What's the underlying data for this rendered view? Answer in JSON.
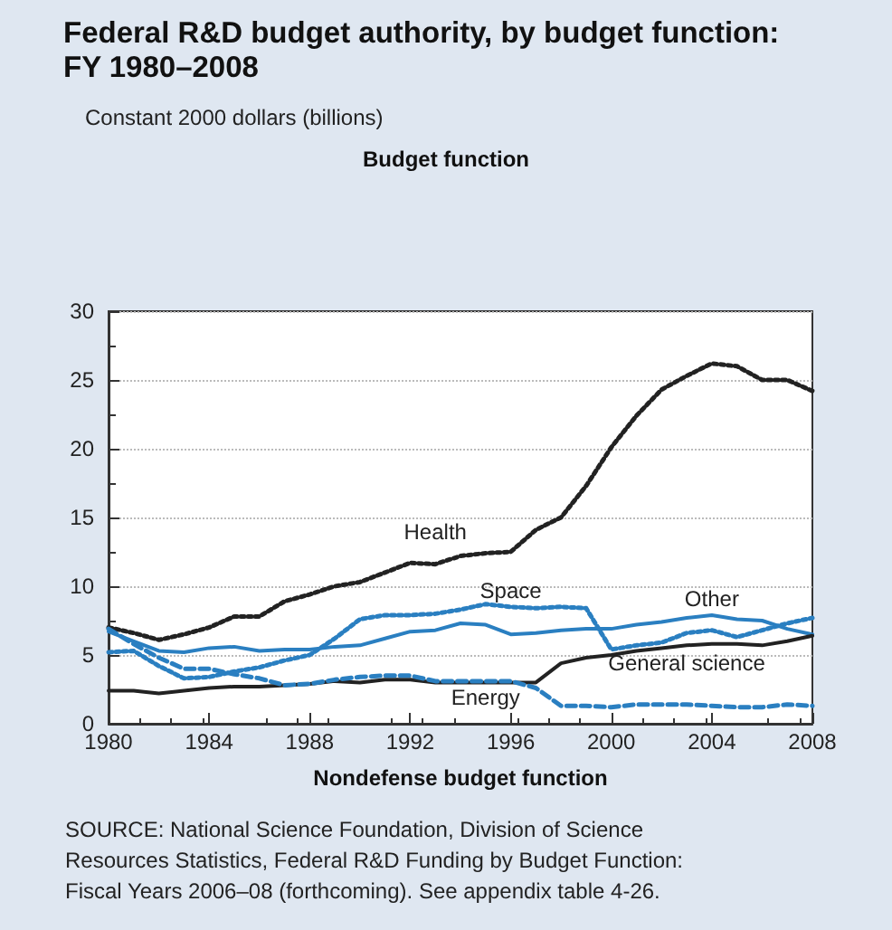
{
  "chart_data": {
    "type": "line",
    "title": "Federal R&D budget authority, by budget function: FY 1980–2008",
    "subtitle": "Constant 2000 dollars (billions)",
    "xlabel": "Nondefense budget function",
    "annotations": [
      "Budget function",
      "SOURCE: National Science Foundation, Division of Science Resources Statistics, Federal R&D Funding by Budget Function: Fiscal Years 2006–08 (forthcoming). See appendix table 4-26."
    ],
    "x": [
      1980,
      1981,
      1982,
      1983,
      1984,
      1985,
      1986,
      1987,
      1988,
      1989,
      1990,
      1991,
      1992,
      1993,
      1994,
      1995,
      1996,
      1997,
      1998,
      1999,
      2000,
      2001,
      2002,
      2003,
      2004,
      2005,
      2006,
      2007,
      2008
    ],
    "series": [
      {
        "name": "Health",
        "color": "#222222",
        "line_style": "dotted",
        "values": [
          7.0,
          6.6,
          6.1,
          6.5,
          7.0,
          7.8,
          7.8,
          8.9,
          9.4,
          10.0,
          10.3,
          11.0,
          11.7,
          11.6,
          12.2,
          12.4,
          12.5,
          14.1,
          15.0,
          17.3,
          20.1,
          22.4,
          24.3,
          25.3,
          26.2,
          26.0,
          25.0,
          25.0,
          24.2
        ]
      },
      {
        "name": "Space",
        "color": "#2a7fc1",
        "line_style": "dotted",
        "values": [
          5.2,
          5.3,
          4.2,
          3.3,
          3.4,
          3.8,
          4.1,
          4.6,
          5.0,
          6.2,
          7.6,
          7.9,
          7.9,
          8.0,
          8.3,
          8.7,
          8.5,
          8.4,
          8.5,
          8.4,
          5.4,
          5.7,
          5.9,
          6.6,
          6.8,
          6.3,
          6.8,
          7.3,
          7.7
        ]
      },
      {
        "name": "Other",
        "color": "#2a7fc1",
        "line_style": "solid",
        "values": [
          6.7,
          6.0,
          5.3,
          5.2,
          5.5,
          5.6,
          5.3,
          5.4,
          5.4,
          5.6,
          5.7,
          6.2,
          6.7,
          6.8,
          7.3,
          7.2,
          6.5,
          6.6,
          6.8,
          6.9,
          6.9,
          7.2,
          7.4,
          7.7,
          7.9,
          7.6,
          7.5,
          6.9,
          6.5
        ]
      },
      {
        "name": "General science",
        "color": "#222222",
        "line_style": "solid",
        "values": [
          2.4,
          2.4,
          2.2,
          2.4,
          2.6,
          2.7,
          2.7,
          2.8,
          2.9,
          3.1,
          3.0,
          3.2,
          3.2,
          3.0,
          3.0,
          3.0,
          3.0,
          3.0,
          4.4,
          4.8,
          5.0,
          5.3,
          5.5,
          5.7,
          5.8,
          5.8,
          5.7,
          6.0,
          6.4
        ]
      },
      {
        "name": "Energy",
        "color": "#2a7fc1",
        "line_style": "dashed",
        "values": [
          6.9,
          5.8,
          4.8,
          4.0,
          4.0,
          3.6,
          3.3,
          2.8,
          2.9,
          3.2,
          3.4,
          3.5,
          3.5,
          3.1,
          3.1,
          3.1,
          3.1,
          2.6,
          1.3,
          1.3,
          1.2,
          1.4,
          1.4,
          1.4,
          1.3,
          1.2,
          1.2,
          1.4,
          1.3
        ]
      }
    ],
    "xlim": [
      1980,
      2008
    ],
    "xticks": [
      1980,
      1984,
      1988,
      1992,
      1996,
      2000,
      2004,
      2008
    ],
    "ylim": [
      0,
      30
    ],
    "yticks": [
      0,
      5,
      10,
      15,
      20,
      25,
      30
    ],
    "grid": "y",
    "legend": false,
    "marker": "none"
  }
}
